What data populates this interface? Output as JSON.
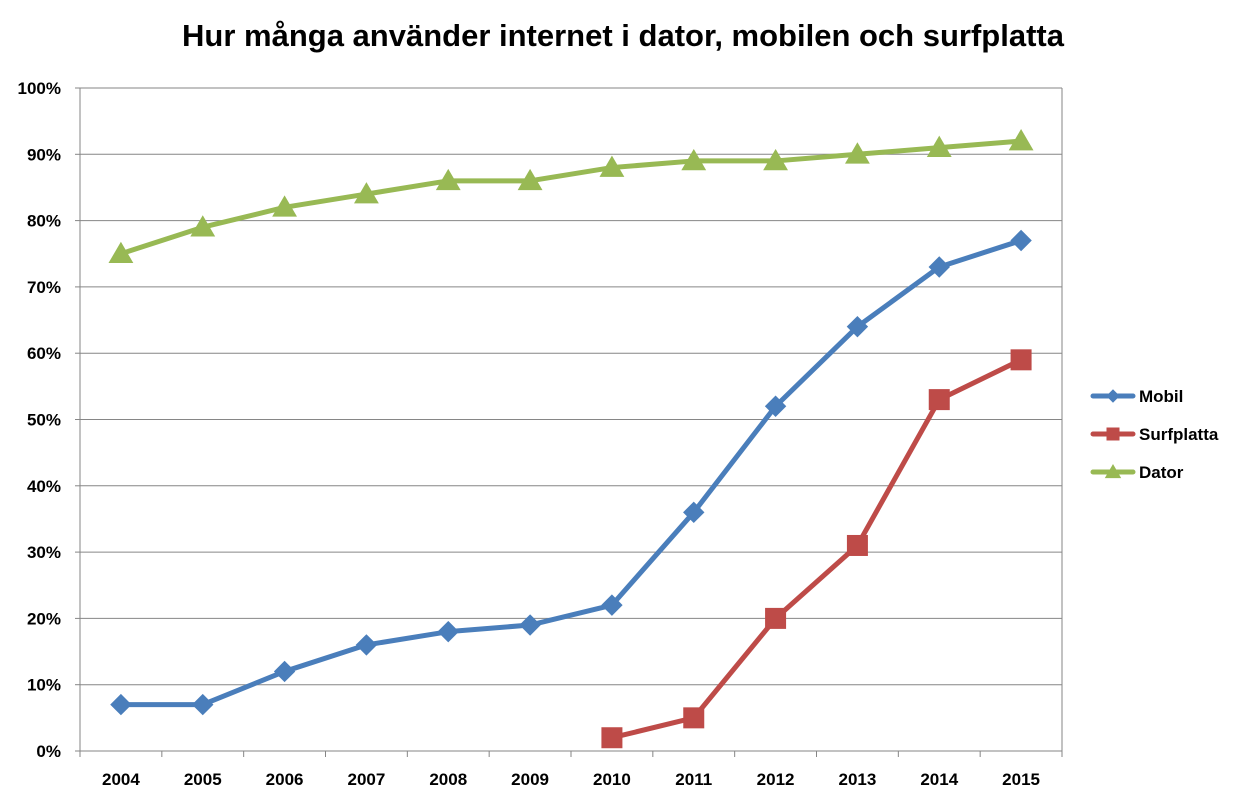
{
  "chart_data": {
    "type": "line",
    "title": "Hur många använder internet i dator, mobilen och surfplatta",
    "xlabel": "",
    "ylabel": "",
    "categories": [
      "2004",
      "2005",
      "2006",
      "2007",
      "2008",
      "2009",
      "2010",
      "2011",
      "2012",
      "2013",
      "2014",
      "2015"
    ],
    "ylim": [
      0,
      100
    ],
    "y_ticks": [
      0,
      10,
      20,
      30,
      40,
      50,
      60,
      70,
      80,
      90,
      100
    ],
    "y_tick_suffix": "%",
    "grid": true,
    "legend_position": "right",
    "series": [
      {
        "name": "Mobil",
        "color": "#4a7ebb",
        "marker": "diamond",
        "values": [
          7,
          7,
          12,
          16,
          18,
          19,
          22,
          36,
          52,
          64,
          73,
          77
        ]
      },
      {
        "name": "Surfplatta",
        "color": "#be4b48",
        "marker": "square",
        "values": [
          null,
          null,
          null,
          null,
          null,
          null,
          2,
          5,
          20,
          31,
          53,
          59
        ]
      },
      {
        "name": "Dator",
        "color": "#98b954",
        "marker": "triangle",
        "values": [
          75,
          79,
          82,
          84,
          86,
          86,
          88,
          89,
          89,
          90,
          91,
          92
        ]
      }
    ]
  }
}
